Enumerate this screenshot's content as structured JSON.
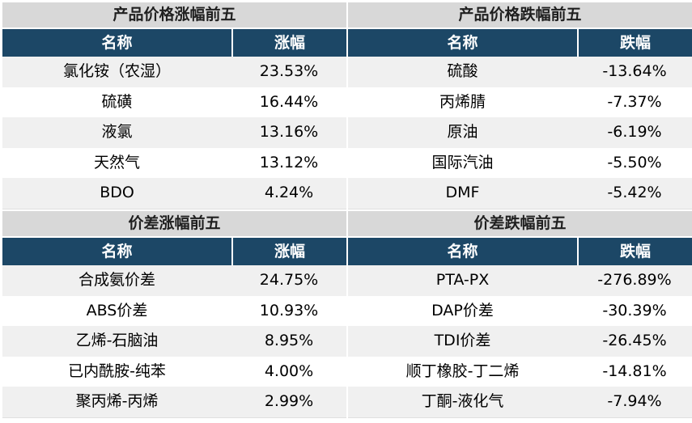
{
  "panels": {
    "top_left": {
      "title": "产品价格涨幅前五",
      "col_name": "名称",
      "col_value": "涨幅",
      "rows": [
        {
          "name": "氯化铵（农湿）",
          "value": "23.53%"
        },
        {
          "name": "硫磺",
          "value": "16.44%"
        },
        {
          "name": "液氯",
          "value": "13.16%"
        },
        {
          "name": "天然气",
          "value": "13.12%"
        },
        {
          "name": "BDO",
          "value": "4.24%"
        }
      ]
    },
    "top_right": {
      "title": "产品价格跌幅前五",
      "col_name": "名称",
      "col_value": "跌幅",
      "rows": [
        {
          "name": "硫酸",
          "value": "-13.64%"
        },
        {
          "name": "丙烯腈",
          "value": "-7.37%"
        },
        {
          "name": "原油",
          "value": "-6.19%"
        },
        {
          "name": "国际汽油",
          "value": "-5.50%"
        },
        {
          "name": "DMF",
          "value": "-5.42%"
        }
      ]
    },
    "bottom_left": {
      "title": "价差涨幅前五",
      "col_name": "名称",
      "col_value": "涨幅",
      "rows": [
        {
          "name": "合成氨价差",
          "value": "24.75%"
        },
        {
          "name": "ABS价差",
          "value": "10.93%"
        },
        {
          "name": "乙烯-石脑油",
          "value": "8.95%"
        },
        {
          "name": "已内酰胺-纯苯",
          "value": "4.00%"
        },
        {
          "name": "聚丙烯-丙烯",
          "value": "2.99%"
        }
      ]
    },
    "bottom_right": {
      "title": "价差跌幅前五",
      "col_name": "名称",
      "col_value": "跌幅",
      "rows": [
        {
          "name": "PTA-PX",
          "value": "-276.89%"
        },
        {
          "name": "DAP价差",
          "value": "-30.39%"
        },
        {
          "name": "TDI价差",
          "value": "-26.45%"
        },
        {
          "name": "顺丁橡胶-丁二烯",
          "value": "-14.81%"
        },
        {
          "name": "丁酮-液化气",
          "value": "-7.94%"
        }
      ]
    }
  },
  "colors": {
    "header_bg": "#1c4766",
    "title_bg": "#d8d8d8",
    "row_alt_bg": "#f0f0f0"
  }
}
